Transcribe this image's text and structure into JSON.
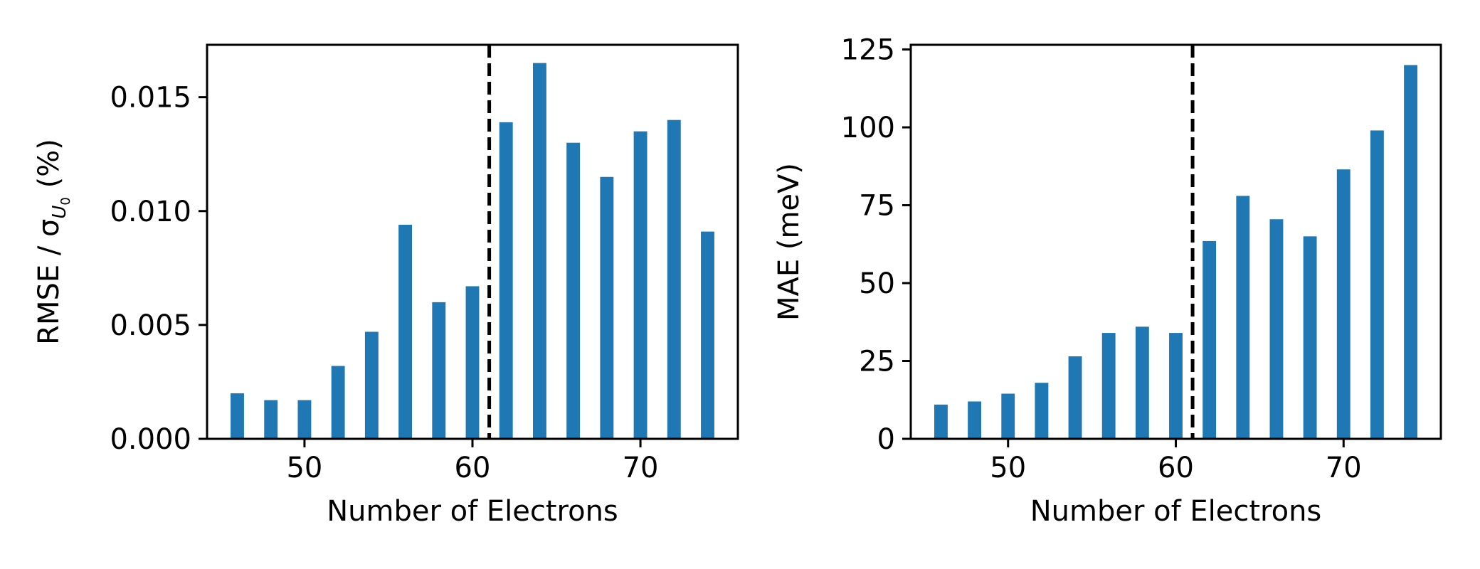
{
  "colors": {
    "bar": "#1f77b4",
    "axis": "#000000",
    "dashed_line": "#000000"
  },
  "chart_data": [
    {
      "type": "bar",
      "xlabel": "Number of Electrons",
      "ylabel_main": "RMSE / σ",
      "ylabel_sub": "U",
      "ylabel_subsub": "0",
      "ylabel_tail": " (%)",
      "xlim": [
        44.2,
        75.8
      ],
      "ylim": [
        0,
        0.0173
      ],
      "xticks": [
        50,
        60,
        70
      ],
      "xtick_labels": [
        "50",
        "60",
        "70"
      ],
      "yticks": [
        0,
        0.005,
        0.01,
        0.015
      ],
      "ytick_labels": [
        "0.000",
        "0.005",
        "0.010",
        "0.015"
      ],
      "vline_x": 61,
      "bar_width": 0.8,
      "x": [
        46,
        48,
        50,
        52,
        54,
        56,
        58,
        60,
        62,
        64,
        66,
        68,
        70,
        72,
        74
      ],
      "values": [
        0.002,
        0.0017,
        0.0017,
        0.0032,
        0.0047,
        0.0094,
        0.006,
        0.0067,
        0.0139,
        0.0165,
        0.013,
        0.0115,
        0.0135,
        0.014,
        0.0091
      ]
    },
    {
      "type": "bar",
      "xlabel": "Number of Electrons",
      "ylabel": "MAE (meV)",
      "xlim": [
        44.2,
        75.8
      ],
      "ylim": [
        0,
        126.5
      ],
      "xticks": [
        50,
        60,
        70
      ],
      "xtick_labels": [
        "50",
        "60",
        "70"
      ],
      "yticks": [
        0,
        25,
        50,
        75,
        100,
        125
      ],
      "ytick_labels": [
        "0",
        "25",
        "50",
        "75",
        "100",
        "125"
      ],
      "vline_x": 61,
      "bar_width": 0.8,
      "x": [
        46,
        48,
        50,
        52,
        54,
        56,
        58,
        60,
        62,
        64,
        66,
        68,
        70,
        72,
        74
      ],
      "values": [
        11,
        12,
        14.5,
        18,
        26.5,
        34,
        36,
        34,
        63.5,
        78,
        70.5,
        65,
        86.5,
        99,
        120
      ]
    }
  ]
}
